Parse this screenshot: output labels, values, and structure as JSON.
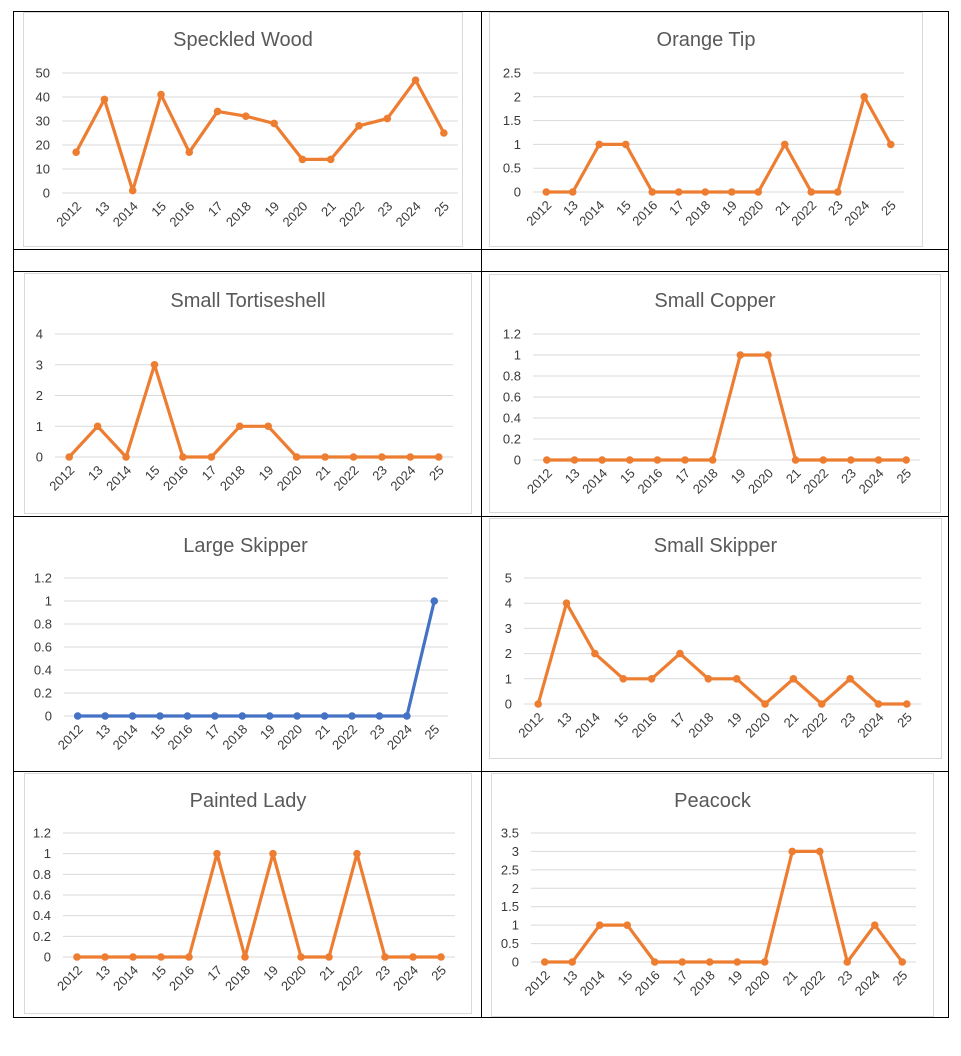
{
  "categories": [
    "2012",
    "13",
    "2014",
    "15",
    "2016",
    "17",
    "2018",
    "19",
    "2020",
    "21",
    "2022",
    "23",
    "2024",
    "25"
  ],
  "colors": {
    "orange": "#ED7D31",
    "blue": "#4472C4",
    "grid": "#D9D9D9",
    "frame": "#D9D9D9"
  },
  "chart_data": [
    {
      "type": "line",
      "title": "Speckled Wood",
      "categories": [
        "2012",
        "13",
        "2014",
        "15",
        "2016",
        "17",
        "2018",
        "19",
        "2020",
        "21",
        "2022",
        "23",
        "2024",
        "25"
      ],
      "series": [
        {
          "values": [
            17,
            39,
            1,
            41,
            17,
            34,
            32,
            29,
            14,
            14,
            28,
            31,
            47,
            25
          ],
          "color": "#ED7D31"
        }
      ],
      "ylim": [
        0,
        50
      ],
      "yticks": [
        "0",
        "10",
        "20",
        "30",
        "40",
        "50"
      ],
      "grid": true
    },
    {
      "type": "line",
      "title": "Orange Tip",
      "categories": [
        "2012",
        "13",
        "2014",
        "15",
        "2016",
        "17",
        "2018",
        "19",
        "2020",
        "21",
        "2022",
        "23",
        "2024",
        "25"
      ],
      "series": [
        {
          "values": [
            0,
            0,
            1,
            1,
            0,
            0,
            0,
            0,
            0,
            1,
            0,
            0,
            2,
            1
          ],
          "color": "#ED7D31"
        }
      ],
      "ylim": [
        0,
        2.5
      ],
      "yticks": [
        "0",
        "0.5",
        "1",
        "1.5",
        "2",
        "2.5"
      ],
      "grid": true
    },
    {
      "type": "line",
      "title": "Small Tortiseshell",
      "categories": [
        "2012",
        "13",
        "2014",
        "15",
        "2016",
        "17",
        "2018",
        "19",
        "2020",
        "21",
        "2022",
        "23",
        "2024",
        "25"
      ],
      "series": [
        {
          "values": [
            0,
            1,
            0,
            3,
            0,
            0,
            1,
            1,
            0,
            0,
            0,
            0,
            0,
            0
          ],
          "color": "#ED7D31"
        }
      ],
      "ylim": [
        0,
        4
      ],
      "yticks": [
        "0",
        "1",
        "2",
        "3",
        "4"
      ],
      "grid": true
    },
    {
      "type": "line",
      "title": "Small Copper",
      "categories": [
        "2012",
        "13",
        "2014",
        "15",
        "2016",
        "17",
        "2018",
        "19",
        "2020",
        "21",
        "2022",
        "23",
        "2024",
        "25"
      ],
      "series": [
        {
          "values": [
            0,
            0,
            0,
            0,
            0,
            0,
            0,
            1,
            1,
            0,
            0,
            0,
            0,
            0
          ],
          "color": "#ED7D31"
        }
      ],
      "ylim": [
        0,
        1.2
      ],
      "yticks": [
        "0",
        "0.2",
        "0.4",
        "0.6",
        "0.8",
        "1",
        "1.2"
      ],
      "grid": true
    },
    {
      "type": "line",
      "title": "Large Skipper",
      "categories": [
        "2012",
        "13",
        "2014",
        "15",
        "2016",
        "17",
        "2018",
        "19",
        "2020",
        "21",
        "2022",
        "23",
        "2024",
        "25"
      ],
      "series": [
        {
          "values": [
            0,
            0,
            0,
            0,
            0,
            0,
            0,
            0,
            0,
            0,
            0,
            0,
            0,
            1
          ],
          "color": "#4472C4"
        }
      ],
      "ylim": [
        0,
        1.2
      ],
      "yticks": [
        "0",
        "0.2",
        "0.4",
        "0.6",
        "0.8",
        "1",
        "1.2"
      ],
      "grid": true
    },
    {
      "type": "line",
      "title": "Small Skipper",
      "categories": [
        "2012",
        "13",
        "2014",
        "15",
        "2016",
        "17",
        "2018",
        "19",
        "2020",
        "21",
        "2022",
        "23",
        "2024",
        "25"
      ],
      "series": [
        {
          "values": [
            0,
            4,
            2,
            1,
            1,
            2,
            1,
            1,
            0,
            1,
            0,
            1,
            0,
            0
          ],
          "color": "#ED7D31"
        }
      ],
      "ylim": [
        0,
        5
      ],
      "yticks": [
        "0",
        "1",
        "2",
        "3",
        "4",
        "5"
      ],
      "grid": true
    },
    {
      "type": "line",
      "title": "Painted Lady",
      "categories": [
        "2012",
        "13",
        "2014",
        "15",
        "2016",
        "17",
        "2018",
        "19",
        "2020",
        "21",
        "2022",
        "23",
        "2024",
        "25"
      ],
      "series": [
        {
          "values": [
            0,
            0,
            0,
            0,
            0,
            1,
            0,
            1,
            0,
            0,
            1,
            0,
            0,
            0
          ],
          "color": "#ED7D31"
        }
      ],
      "ylim": [
        0,
        1.2
      ],
      "yticks": [
        "0",
        "0.2",
        "0.4",
        "0.6",
        "0.8",
        "1",
        "1.2"
      ],
      "grid": true
    },
    {
      "type": "line",
      "title": "Peacock",
      "categories": [
        "2012",
        "13",
        "2014",
        "15",
        "2016",
        "17",
        "2018",
        "19",
        "2020",
        "21",
        "2022",
        "23",
        "2024",
        "25"
      ],
      "series": [
        {
          "values": [
            0,
            0,
            1,
            1,
            0,
            0,
            0,
            0,
            0,
            3,
            3,
            0,
            1,
            0
          ],
          "color": "#ED7D31"
        }
      ],
      "ylim": [
        0,
        3.5
      ],
      "yticks": [
        "0",
        "0.5",
        "1",
        "1.5",
        "2",
        "2.5",
        "3",
        "3.5"
      ],
      "grid": true
    }
  ]
}
